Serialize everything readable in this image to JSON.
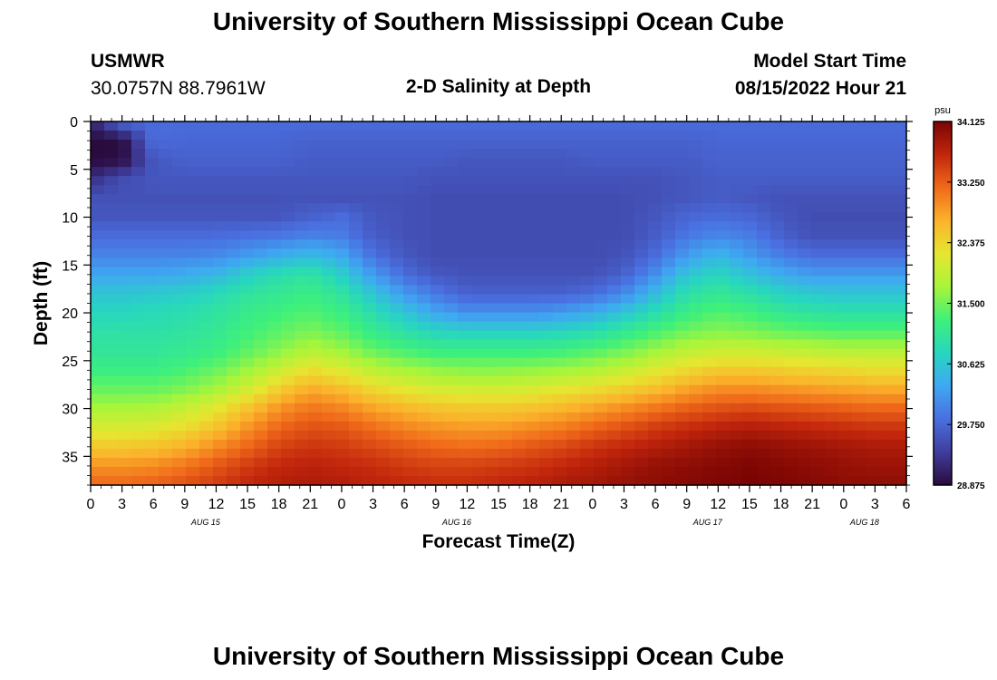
{
  "header": {
    "title": "University of Southern Mississippi Ocean Cube",
    "station": "USMWR",
    "coordinates": "30.0757N  88.7961W",
    "subtitle": "2-D Salinity at Depth",
    "model_start_label": "Model Start Time",
    "model_start_value": "08/15/2022 Hour 21"
  },
  "footer": {
    "title": "University of Southern Mississippi Ocean Cube"
  },
  "chart_data": {
    "type": "heatmap",
    "title": "2-D Salinity at Depth",
    "xlabel": "Forecast Time(Z)",
    "ylabel": "Depth (ft)",
    "ylim": [
      0,
      38
    ],
    "y_reversed": true,
    "xlim_hours": [
      0,
      78
    ],
    "x_tick_labels": [
      "0",
      "3",
      "6",
      "9",
      "12",
      "15",
      "18",
      "21",
      "0",
      "3",
      "6",
      "9",
      "12",
      "15",
      "18",
      "21",
      "0",
      "3",
      "6",
      "9",
      "12",
      "15",
      "18",
      "21",
      "0",
      "3",
      "6"
    ],
    "y_tick_labels": [
      "0",
      "5",
      "10",
      "15",
      "20",
      "25",
      "30",
      "35"
    ],
    "day_labels": [
      {
        "label": "AUG 15",
        "hour": 11
      },
      {
        "label": "AUG 16",
        "hour": 35
      },
      {
        "label": "AUG 17",
        "hour": 59
      },
      {
        "label": "AUG 18",
        "hour": 74
      }
    ],
    "colorbar": {
      "unit": "psu",
      "min": 28.875,
      "max": 34.125,
      "tick_labels": [
        "34.125",
        "33.250",
        "32.375",
        "31.500",
        "30.625",
        "29.750",
        "28.875"
      ]
    },
    "colormap": [
      "#2a0a3d",
      "#3f3e9c",
      "#4a6fe0",
      "#3fa8f2",
      "#27d6c0",
      "#3ef07a",
      "#a8f53a",
      "#e6e630",
      "#fbb32b",
      "#f06a1a",
      "#c2260c",
      "#7a0403"
    ],
    "hours": [
      0,
      3,
      6,
      9,
      12,
      15,
      18,
      21,
      24,
      27,
      30,
      33,
      36,
      39,
      42,
      45,
      48,
      51,
      54,
      57,
      60,
      63,
      66,
      69,
      72,
      75,
      78
    ],
    "depths": [
      0,
      2,
      4,
      6,
      8,
      10,
      12,
      14,
      16,
      18,
      20,
      22,
      24,
      26,
      28,
      30,
      32,
      34,
      36,
      38
    ],
    "salinity": [
      [
        29.1,
        29.8,
        29.8,
        29.8,
        29.8,
        29.8,
        29.8,
        29.8,
        29.8,
        29.8,
        29.8,
        29.8,
        29.8,
        29.8,
        29.8,
        29.8,
        29.8,
        29.8,
        29.8,
        29.8,
        29.8,
        29.8,
        29.8,
        29.8,
        29.8,
        29.8,
        29.8
      ],
      [
        28.875,
        28.9,
        29.8,
        29.75,
        29.75,
        29.75,
        29.75,
        29.7,
        29.7,
        29.7,
        29.7,
        29.7,
        29.7,
        29.7,
        29.7,
        29.7,
        29.7,
        29.7,
        29.7,
        29.7,
        29.75,
        29.75,
        29.75,
        29.75,
        29.75,
        29.75,
        29.75
      ],
      [
        28.875,
        28.9,
        29.6,
        29.7,
        29.7,
        29.7,
        29.7,
        29.65,
        29.65,
        29.65,
        29.65,
        29.65,
        29.6,
        29.6,
        29.6,
        29.6,
        29.65,
        29.65,
        29.65,
        29.65,
        29.7,
        29.7,
        29.7,
        29.7,
        29.7,
        29.7,
        29.7
      ],
      [
        29.2,
        29.5,
        29.6,
        29.6,
        29.6,
        29.6,
        29.6,
        29.6,
        29.6,
        29.6,
        29.6,
        29.55,
        29.55,
        29.55,
        29.55,
        29.55,
        29.55,
        29.55,
        29.55,
        29.6,
        29.65,
        29.65,
        29.65,
        29.65,
        29.65,
        29.65,
        29.65
      ],
      [
        29.55,
        29.55,
        29.55,
        29.55,
        29.55,
        29.55,
        29.55,
        29.55,
        29.55,
        29.55,
        29.55,
        29.5,
        29.5,
        29.5,
        29.5,
        29.5,
        29.5,
        29.5,
        29.55,
        29.6,
        29.65,
        29.6,
        29.55,
        29.55,
        29.55,
        29.55,
        29.55
      ],
      [
        29.6,
        29.6,
        29.6,
        29.6,
        29.6,
        29.6,
        29.6,
        29.7,
        29.8,
        29.6,
        29.55,
        29.5,
        29.5,
        29.5,
        29.5,
        29.5,
        29.5,
        29.5,
        29.6,
        29.75,
        29.8,
        29.75,
        29.6,
        29.5,
        29.5,
        29.5,
        29.5
      ],
      [
        29.8,
        29.8,
        29.8,
        29.8,
        29.8,
        29.85,
        29.9,
        30.0,
        29.95,
        29.65,
        29.55,
        29.5,
        29.5,
        29.5,
        29.5,
        29.5,
        29.5,
        29.5,
        29.65,
        29.9,
        30.05,
        29.95,
        29.7,
        29.55,
        29.55,
        29.55,
        29.55
      ],
      [
        30.0,
        30.0,
        30.0,
        30.0,
        30.05,
        30.2,
        30.35,
        30.5,
        30.3,
        29.85,
        29.6,
        29.5,
        29.5,
        29.5,
        29.5,
        29.5,
        29.5,
        29.55,
        29.8,
        30.2,
        30.45,
        30.2,
        29.95,
        29.8,
        29.8,
        29.8,
        29.8
      ],
      [
        30.3,
        30.3,
        30.3,
        30.35,
        30.45,
        30.7,
        30.9,
        31.0,
        30.7,
        30.2,
        29.8,
        29.6,
        29.55,
        29.55,
        29.55,
        29.55,
        29.55,
        29.7,
        30.1,
        30.6,
        30.8,
        30.55,
        30.35,
        30.2,
        30.2,
        30.2,
        30.2
      ],
      [
        30.6,
        30.6,
        30.65,
        30.7,
        30.85,
        31.0,
        31.1,
        31.2,
        31.0,
        30.6,
        30.2,
        29.9,
        29.7,
        29.7,
        29.7,
        29.7,
        29.8,
        30.05,
        30.5,
        30.95,
        31.1,
        30.95,
        30.75,
        30.65,
        30.6,
        30.6,
        30.6
      ],
      [
        30.8,
        30.8,
        30.85,
        30.9,
        31.0,
        31.15,
        31.25,
        31.35,
        31.2,
        30.9,
        30.6,
        30.3,
        30.1,
        30.1,
        30.1,
        30.2,
        30.35,
        30.6,
        30.9,
        31.2,
        31.35,
        31.25,
        31.1,
        31.0,
        30.95,
        30.95,
        30.95
      ],
      [
        30.95,
        30.95,
        30.95,
        31.0,
        31.1,
        31.25,
        31.4,
        31.55,
        31.4,
        31.15,
        30.95,
        30.8,
        30.75,
        30.75,
        30.75,
        30.8,
        30.9,
        31.1,
        31.3,
        31.5,
        31.6,
        31.55,
        31.45,
        31.4,
        31.35,
        31.35,
        31.35
      ],
      [
        31.05,
        31.05,
        31.05,
        31.1,
        31.2,
        31.4,
        31.6,
        31.85,
        31.7,
        31.45,
        31.3,
        31.2,
        31.2,
        31.2,
        31.2,
        31.25,
        31.35,
        31.5,
        31.7,
        31.9,
        32.0,
        32.0,
        31.95,
        31.9,
        31.85,
        31.85,
        31.85
      ],
      [
        31.2,
        31.2,
        31.2,
        31.3,
        31.45,
        31.7,
        32.0,
        32.3,
        32.15,
        31.9,
        31.75,
        31.65,
        31.6,
        31.6,
        31.65,
        31.7,
        31.8,
        31.95,
        32.15,
        32.35,
        32.5,
        32.5,
        32.45,
        32.4,
        32.35,
        32.3,
        32.3
      ],
      [
        31.45,
        31.45,
        31.45,
        31.55,
        31.75,
        32.05,
        32.45,
        32.75,
        32.6,
        32.35,
        32.2,
        32.1,
        32.05,
        32.05,
        32.1,
        32.2,
        32.3,
        32.45,
        32.6,
        32.8,
        32.95,
        32.95,
        32.9,
        32.85,
        32.8,
        32.75,
        32.75
      ],
      [
        31.75,
        31.75,
        31.8,
        31.95,
        32.2,
        32.55,
        32.9,
        33.1,
        33.0,
        32.8,
        32.65,
        32.55,
        32.5,
        32.5,
        32.55,
        32.65,
        32.8,
        32.95,
        33.1,
        33.25,
        33.35,
        33.4,
        33.35,
        33.3,
        33.25,
        33.2,
        33.2
      ],
      [
        32.1,
        32.1,
        32.15,
        32.3,
        32.55,
        32.9,
        33.2,
        33.35,
        33.3,
        33.15,
        33.0,
        32.9,
        32.85,
        32.85,
        32.95,
        33.05,
        33.2,
        33.35,
        33.5,
        33.6,
        33.7,
        33.75,
        33.7,
        33.65,
        33.6,
        33.55,
        33.55
      ],
      [
        32.5,
        32.5,
        32.55,
        32.7,
        32.95,
        33.2,
        33.45,
        33.55,
        33.5,
        33.4,
        33.3,
        33.2,
        33.15,
        33.2,
        33.3,
        33.4,
        33.55,
        33.65,
        33.75,
        33.85,
        33.95,
        34.0,
        33.95,
        33.9,
        33.85,
        33.8,
        33.8
      ],
      [
        32.9,
        32.9,
        32.95,
        33.1,
        33.3,
        33.5,
        33.65,
        33.7,
        33.65,
        33.6,
        33.5,
        33.45,
        33.45,
        33.5,
        33.55,
        33.65,
        33.75,
        33.85,
        33.95,
        34.0,
        34.05,
        34.1,
        34.05,
        34.0,
        33.95,
        33.9,
        33.9
      ],
      [
        33.2,
        33.2,
        33.25,
        33.35,
        33.5,
        33.65,
        33.75,
        33.8,
        33.75,
        33.7,
        33.65,
        33.6,
        33.6,
        33.65,
        33.7,
        33.8,
        33.85,
        33.95,
        34.0,
        34.05,
        34.1,
        34.125,
        34.1,
        34.05,
        34.0,
        34.0,
        34.0
      ]
    ]
  }
}
